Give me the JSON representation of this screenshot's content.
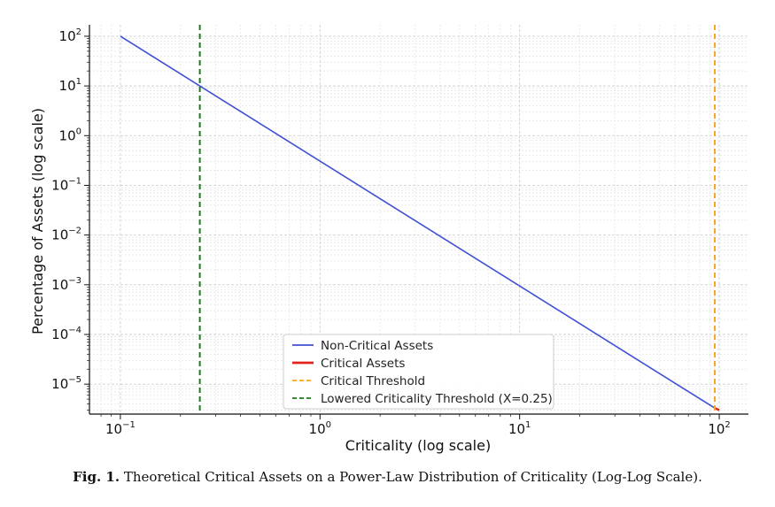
{
  "chart_data": {
    "type": "line",
    "xlabel": "Criticality (log scale)",
    "ylabel": "Percentage of Assets (log scale)",
    "x_scale": "log",
    "y_scale": "log",
    "xlim": [
      0.07,
      140
    ],
    "ylim": [
      2.5e-06,
      170
    ],
    "x_ticks": [
      {
        "base": "10",
        "exp": "−1",
        "value": 0.1
      },
      {
        "base": "10",
        "exp": "0",
        "value": 1
      },
      {
        "base": "10",
        "exp": "1",
        "value": 10
      },
      {
        "base": "10",
        "exp": "2",
        "value": 100
      }
    ],
    "y_ticks": [
      {
        "base": "10",
        "exp": "2",
        "value": 100
      },
      {
        "base": "10",
        "exp": "1",
        "value": 10
      },
      {
        "base": "10",
        "exp": "0",
        "value": 1
      },
      {
        "base": "10",
        "exp": "−1",
        "value": 0.1
      },
      {
        "base": "10",
        "exp": "−2",
        "value": 0.01
      },
      {
        "base": "10",
        "exp": "−3",
        "value": 0.001
      },
      {
        "base": "10",
        "exp": "−4",
        "value": 0.0001
      },
      {
        "base": "10",
        "exp": "−5",
        "value": 1e-05
      }
    ],
    "grid": true,
    "legend_position": "lower-right",
    "series": [
      {
        "name": "Non-Critical Assets",
        "color": "#3f4fd6",
        "style": "solid",
        "x": [
          0.1,
          95
        ],
        "y": [
          100,
          3.3e-06
        ]
      },
      {
        "name": "Critical Assets",
        "color": "#e0241b",
        "style": "solid",
        "x": [
          95,
          100
        ],
        "y": [
          3.3e-06,
          3e-06
        ]
      },
      {
        "name": "Critical Threshold",
        "color": "#f5a623",
        "style": "dashed",
        "vertical_x": 95
      },
      {
        "name": "Lowered Criticality Threshold (X=0.25)",
        "color": "#1f7a1f",
        "style": "dashed",
        "vertical_x": 0.25
      }
    ]
  },
  "caption": {
    "label": "Fig. 1.",
    "text": "Theoretical Critical Assets on a Power-Law Distribution of Criticality (Log-Log Scale)."
  }
}
